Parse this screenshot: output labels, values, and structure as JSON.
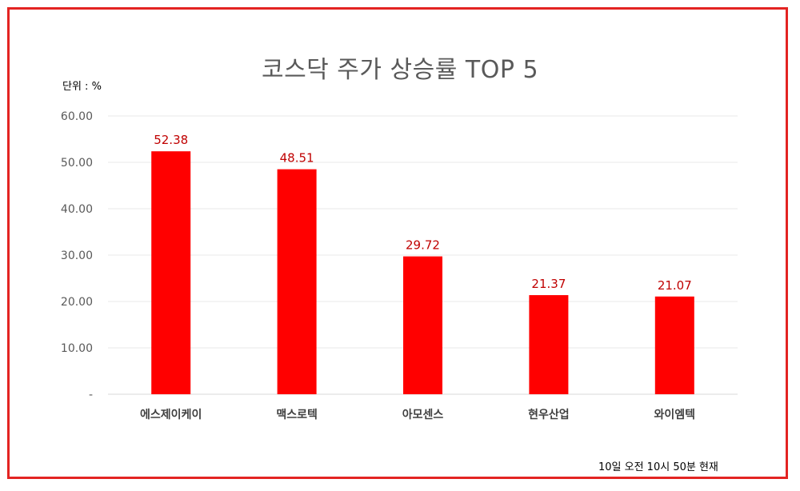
{
  "chart_data": {
    "type": "bar",
    "title": "코스닥 주가 상승률 TOP 5",
    "unit_label": "단위 : %",
    "categories": [
      "에스제이케이",
      "맥스로텍",
      "아모센스",
      "현우산업",
      "와이엠텍"
    ],
    "values": [
      52.38,
      48.51,
      29.72,
      21.37,
      21.07
    ],
    "value_labels": [
      "52.38",
      "48.51",
      "29.72",
      "21.37",
      "21.07"
    ],
    "ylim": [
      0,
      60
    ],
    "yticks": [
      0,
      10,
      20,
      30,
      40,
      50,
      60
    ],
    "ytick_labels": [
      "-",
      "10.00",
      "20.00",
      "30.00",
      "40.00",
      "50.00",
      "60.00"
    ],
    "grid": true,
    "legend": false,
    "bar_color": "#ff0000",
    "label_color": "#c00000"
  },
  "footnote": "10일  오전 10시 50분 현재",
  "frame_color": "#e32422"
}
